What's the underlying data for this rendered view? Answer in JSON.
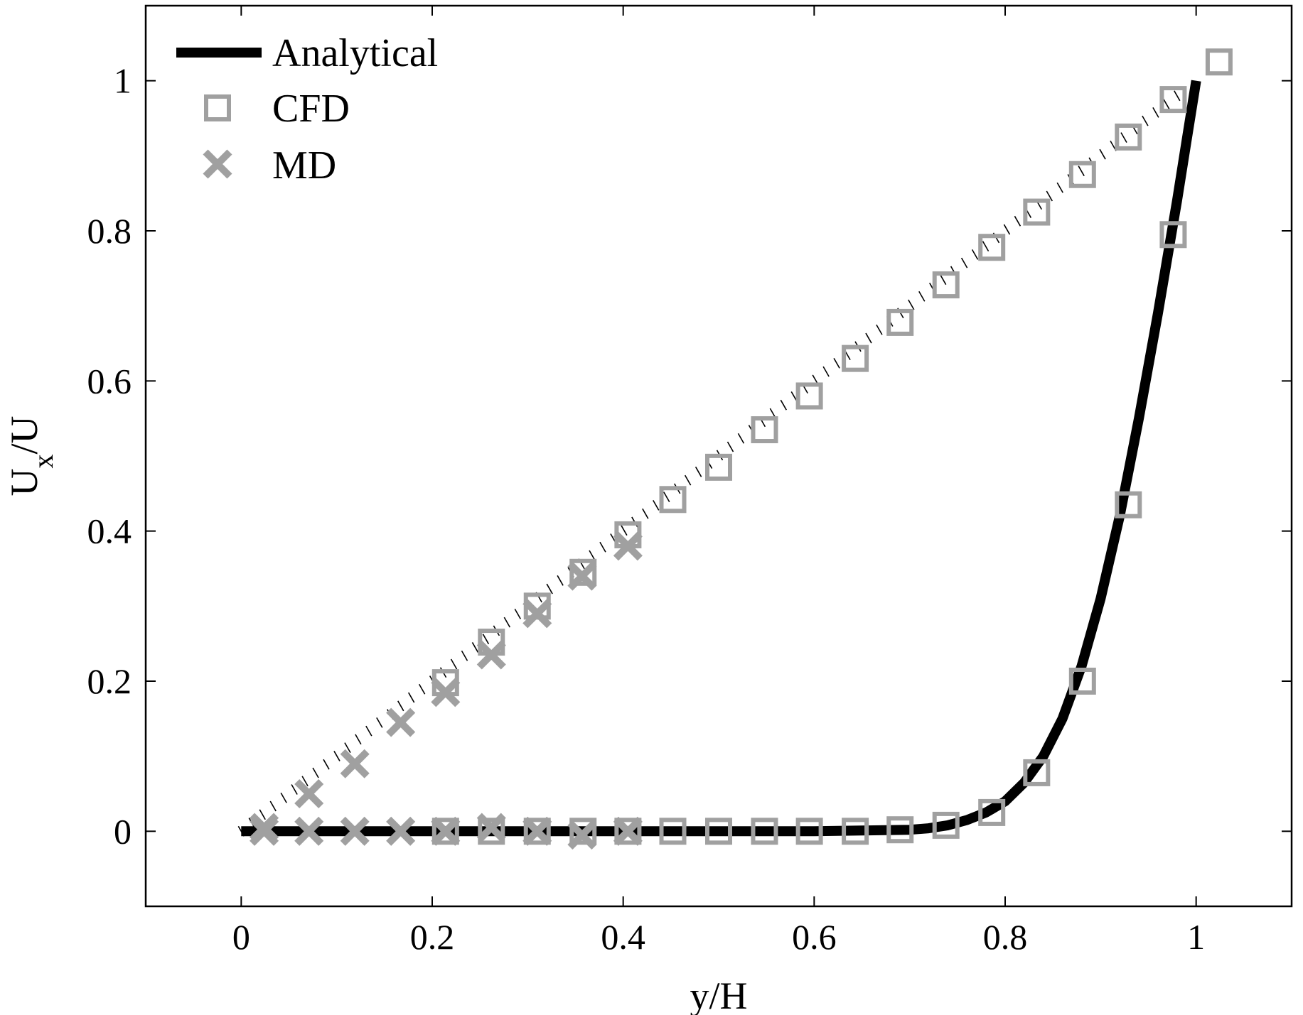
{
  "chart_data": {
    "type": "line",
    "xlabel": "y/H",
    "ylabel": "U",
    "ylabel_sub": "x",
    "ylabel_tail": "/U",
    "xlim": [
      -0.1,
      1.1
    ],
    "ylim": [
      -0.1,
      1.1
    ],
    "xticks": [
      0,
      0.2,
      0.4,
      0.6,
      0.8,
      1
    ],
    "yticks": [
      0,
      0.2,
      0.4,
      0.6,
      0.8,
      1
    ],
    "xtick_labels": [
      "0",
      "0.2",
      "0.4",
      "0.6",
      "0.8",
      "1"
    ],
    "ytick_labels": [
      "0",
      "0.2",
      "0.4",
      "0.6",
      "0.8",
      "1"
    ],
    "legend_position": "top-left",
    "colors": {
      "analytical": "#000000",
      "cfd": "#a0a0a0",
      "md": "#a0a0a0"
    },
    "series": [
      {
        "name": "Analytical",
        "style": "thick-solid-line",
        "x": [
          0.0,
          0.1,
          0.2,
          0.3,
          0.4,
          0.5,
          0.6,
          0.65,
          0.7,
          0.72,
          0.74,
          0.76,
          0.78,
          0.8,
          0.82,
          0.84,
          0.86,
          0.88,
          0.9,
          0.92,
          0.94,
          0.96,
          0.98,
          0.99,
          1.0
        ],
        "y": [
          0.0,
          0.0,
          0.0,
          0.0,
          0.0,
          0.0,
          0.0,
          0.001,
          0.002,
          0.004,
          0.008,
          0.015,
          0.025,
          0.04,
          0.065,
          0.1,
          0.15,
          0.22,
          0.31,
          0.42,
          0.55,
          0.69,
          0.84,
          0.92,
          1.0
        ]
      },
      {
        "name": "CFD",
        "style": "hollow-square",
        "x": [
          0.214,
          0.262,
          0.31,
          0.358,
          0.405,
          0.452,
          0.5,
          0.548,
          0.595,
          0.643,
          0.69,
          0.738,
          0.786,
          0.833,
          0.881,
          0.929,
          0.976,
          0.214,
          0.262,
          0.31,
          0.358,
          0.405,
          0.452,
          0.5,
          0.548,
          0.595,
          0.643,
          0.69,
          0.738,
          0.786,
          0.833,
          0.881,
          0.929,
          0.976,
          1.024
        ],
        "y": [
          0.0,
          0.0,
          0.0,
          0.0,
          0.0,
          0.0,
          0.0,
          0.0,
          0.0,
          0.0,
          0.002,
          0.008,
          0.025,
          0.078,
          0.2,
          0.435,
          0.795,
          0.198,
          0.252,
          0.3,
          0.345,
          0.395,
          0.442,
          0.485,
          0.535,
          0.58,
          0.63,
          0.678,
          0.728,
          0.778,
          0.825,
          0.875,
          0.925,
          0.975,
          1.025
        ]
      },
      {
        "name": "MD",
        "style": "cross",
        "x": [
          0.024,
          0.071,
          0.119,
          0.167,
          0.214,
          0.262,
          0.31,
          0.357,
          0.405,
          0.024,
          0.071,
          0.119,
          0.167,
          0.214,
          0.262,
          0.31,
          0.357,
          0.405
        ],
        "y": [
          0.0,
          0.0,
          0.0,
          0.0,
          0.0,
          0.005,
          0.0,
          -0.005,
          0.0,
          0.005,
          0.05,
          0.09,
          0.145,
          0.185,
          0.235,
          0.29,
          0.34,
          0.38
        ]
      },
      {
        "name": "",
        "style": "hatched-dotted-line",
        "x": [
          0.0,
          0.98
        ],
        "y": [
          0.0,
          0.98
        ]
      }
    ]
  }
}
